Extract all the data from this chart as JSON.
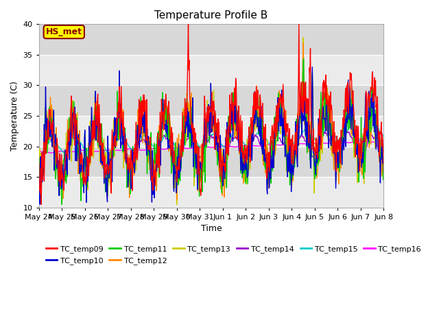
{
  "title": "Temperature Profile B",
  "xlabel": "Time",
  "ylabel": "Temperature (C)",
  "ylim": [
    10,
    40
  ],
  "annotation_text": "HS_met",
  "series_colors": {
    "TC_temp09": "#ff0000",
    "TC_temp10": "#0000cc",
    "TC_temp11": "#00cc00",
    "TC_temp12": "#ff8800",
    "TC_temp13": "#cccc00",
    "TC_temp14": "#9900cc",
    "TC_temp15": "#00cccc",
    "TC_temp16": "#ff00ff"
  },
  "x_tick_labels": [
    "May 24",
    "May 25",
    "May 26",
    "May 27",
    "May 28",
    "May 29",
    "May 30",
    "May 31",
    "Jun 1",
    "Jun 2",
    "Jun 3",
    "Jun 4",
    "Jun 5",
    "Jun 6",
    "Jun 7",
    "Jun 8"
  ],
  "bg_color": "#ffffff",
  "plot_bg_color": "#e8e8e8",
  "band_color_light": "#ebebeb",
  "band_color_dark": "#d8d8d8",
  "grid_color": "#ffffff",
  "annotation_bg": "#ffff00",
  "annotation_border": "#8b0000",
  "yticks": [
    10,
    15,
    20,
    25,
    30,
    35,
    40
  ]
}
